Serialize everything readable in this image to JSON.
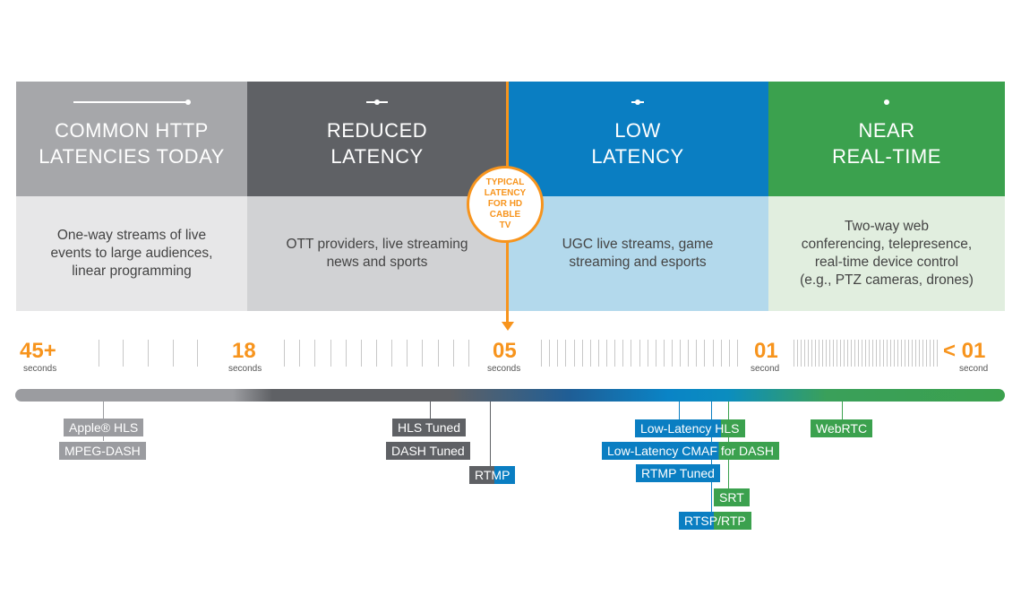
{
  "columns": [
    {
      "title": "COMMON HTTP\nLATENCIES TODAY",
      "description": "One-way streams of live\nevents to large audiences,\nlinear programming",
      "head_color": "#a6a7aa",
      "body_color": "#e7e7e8"
    },
    {
      "title": "REDUCED\nLATENCY",
      "description": "OTT providers, live streaming\nnews and sports",
      "head_color": "#5f6165",
      "body_color": "#d1d2d4"
    },
    {
      "title": "LOW\nLATENCY",
      "description": "UGC live streams, game\nstreaming and esports",
      "head_color": "#0a7ec2",
      "body_color": "#b3d9ec"
    },
    {
      "title": "NEAR\nREAL-TIME",
      "description": "Two-way web\nconferencing, telepresence,\nreal-time device control\n(e.g., PTZ cameras, drones)",
      "head_color": "#3ba14e",
      "body_color": "#e1eedf"
    }
  ],
  "typical_latency_badge": "TYPICAL\nLATENCY\nFOR HD\nCABLE\nTV",
  "scale": [
    {
      "value": "45+",
      "unit": "seconds"
    },
    {
      "value": "18",
      "unit": "seconds"
    },
    {
      "value": "05",
      "unit": "seconds"
    },
    {
      "value": "01",
      "unit": "second"
    },
    {
      "value": "< 01",
      "unit": "second"
    }
  ],
  "protocols": {
    "apple_hls": "Apple® HLS",
    "mpeg_dash": "MPEG-DASH",
    "hls_tuned": "HLS Tuned",
    "dash_tuned": "DASH Tuned",
    "rtmp": "RTMP",
    "ll_hls": "Low-Latency HLS",
    "ll_cmaf": "Low-Latency CMAF for DASH",
    "rtmp_tuned": "RTMP Tuned",
    "srt": "SRT",
    "rtsp": "RTSP/RTP",
    "webrtc": "WebRTC"
  },
  "colors": {
    "orange": "#f7941d",
    "gray": "#9b9ca0",
    "dark_gray": "#5f6165",
    "blue": "#0a7ec2",
    "green": "#3ba14e"
  }
}
